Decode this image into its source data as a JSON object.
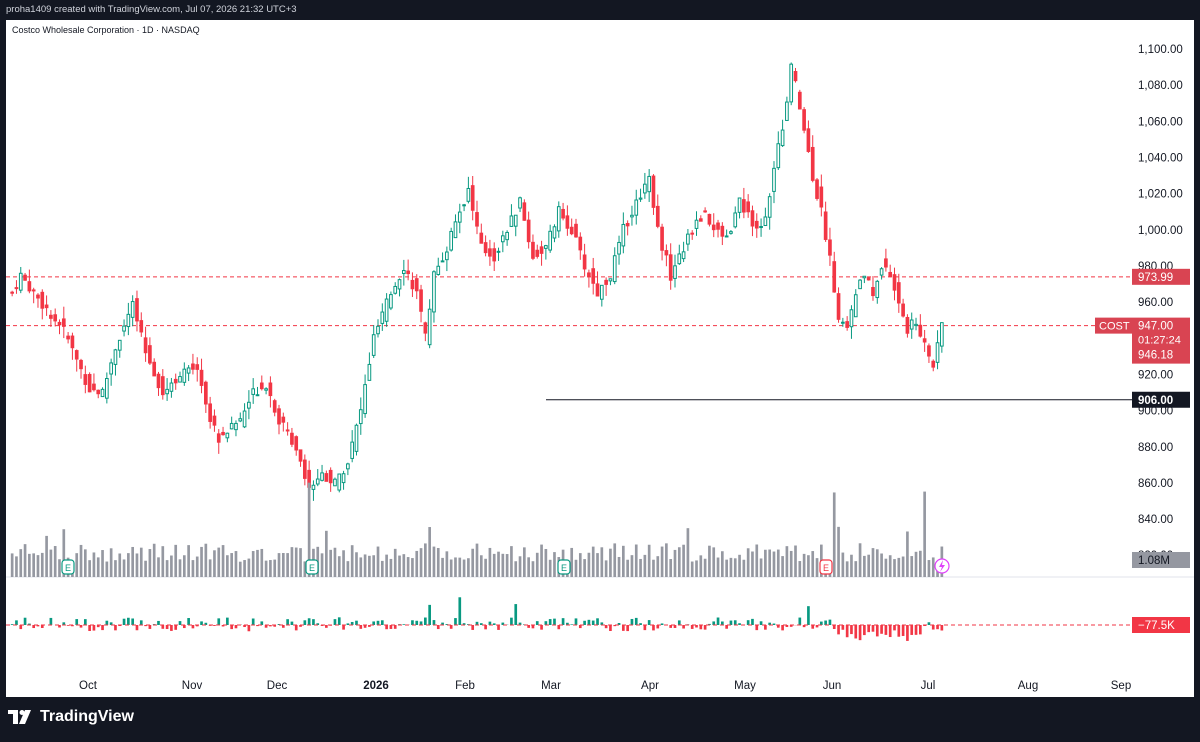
{
  "header": {
    "credit": "proha1409 created with TradingView.com, Jul 07, 2026 21:32 UTC+3"
  },
  "symbol": {
    "title": "Costco Wholesale Corporation · 1D · NASDAQ"
  },
  "brand": {
    "name": "TradingView",
    "logo_icon": "tradingview-logo-icon"
  },
  "colors": {
    "up": "#089981",
    "down": "#f23645",
    "volume": "#9598a1",
    "accent": "#d94452"
  },
  "chart_data": {
    "type": "candlestick",
    "y_axis": {
      "min": 830,
      "max": 1100,
      "ticks": [
        "1,100.00",
        "1,080.00",
        "1,060.00",
        "1,040.00",
        "1,020.00",
        "1,000.00",
        "980.00",
        "960.00",
        "940.00",
        "920.00",
        "900.00",
        "880.00",
        "860.00",
        "840.00",
        "820.00"
      ],
      "tick_values": [
        1100,
        1080,
        1060,
        1040,
        1020,
        1000,
        980,
        960,
        940,
        920,
        900,
        880,
        860,
        840,
        820
      ]
    },
    "x_axis": {
      "labels": [
        "Oct",
        "Nov",
        "Dec",
        "2026",
        "Feb",
        "Mar",
        "Apr",
        "May",
        "Jun",
        "Jul",
        "Aug",
        "Sep"
      ]
    },
    "price_lines": [
      {
        "label": "973.99",
        "value": 973.99,
        "style": "dashed"
      },
      {
        "label": "947.00",
        "value": 947.0,
        "style": "dashed"
      },
      {
        "label": "906.00",
        "value": 906.0,
        "style": "solid"
      }
    ],
    "last_price": {
      "ticker": "COST",
      "price": "947.00",
      "countdown": "01:27:24",
      "secondary": "946.18"
    },
    "volume_label": "1.08M",
    "delta_label": "−77.5K",
    "earnings_markers": [
      "E",
      "E",
      "E",
      "E"
    ],
    "anchors": [
      {
        "i": 0,
        "v": 965
      },
      {
        "i": 2,
        "v": 975
      },
      {
        "i": 6,
        "v": 962
      },
      {
        "i": 12,
        "v": 945
      },
      {
        "i": 15,
        "v": 928
      },
      {
        "i": 18,
        "v": 912
      },
      {
        "i": 21,
        "v": 910
      },
      {
        "i": 24,
        "v": 935
      },
      {
        "i": 28,
        "v": 958
      },
      {
        "i": 31,
        "v": 932
      },
      {
        "i": 35,
        "v": 910
      },
      {
        "i": 38,
        "v": 918
      },
      {
        "i": 43,
        "v": 925
      },
      {
        "i": 46,
        "v": 895
      },
      {
        "i": 48,
        "v": 885
      },
      {
        "i": 53,
        "v": 895
      },
      {
        "i": 56,
        "v": 910
      },
      {
        "i": 59,
        "v": 915
      },
      {
        "i": 62,
        "v": 895
      },
      {
        "i": 66,
        "v": 880
      },
      {
        "i": 69,
        "v": 858
      },
      {
        "i": 72,
        "v": 865
      },
      {
        "i": 75,
        "v": 860
      },
      {
        "i": 78,
        "v": 872
      },
      {
        "i": 81,
        "v": 900
      },
      {
        "i": 84,
        "v": 940
      },
      {
        "i": 88,
        "v": 965
      },
      {
        "i": 91,
        "v": 980
      },
      {
        "i": 94,
        "v": 965
      },
      {
        "i": 96,
        "v": 940
      },
      {
        "i": 98,
        "v": 975
      },
      {
        "i": 101,
        "v": 990
      },
      {
        "i": 103,
        "v": 1005
      },
      {
        "i": 106,
        "v": 1022
      },
      {
        "i": 109,
        "v": 990
      },
      {
        "i": 112,
        "v": 985
      },
      {
        "i": 115,
        "v": 1000
      },
      {
        "i": 118,
        "v": 1015
      },
      {
        "i": 121,
        "v": 985
      },
      {
        "i": 124,
        "v": 990
      },
      {
        "i": 127,
        "v": 1010
      },
      {
        "i": 130,
        "v": 1000
      },
      {
        "i": 133,
        "v": 980
      },
      {
        "i": 136,
        "v": 965
      },
      {
        "i": 139,
        "v": 975
      },
      {
        "i": 142,
        "v": 1000
      },
      {
        "i": 145,
        "v": 1015
      },
      {
        "i": 148,
        "v": 1030
      },
      {
        "i": 150,
        "v": 1000
      },
      {
        "i": 153,
        "v": 975
      },
      {
        "i": 155,
        "v": 985
      },
      {
        "i": 158,
        "v": 1000
      },
      {
        "i": 161,
        "v": 1010
      },
      {
        "i": 163,
        "v": 1000
      },
      {
        "i": 166,
        "v": 995
      },
      {
        "i": 169,
        "v": 1015
      },
      {
        "i": 172,
        "v": 1005
      },
      {
        "i": 174,
        "v": 1000
      },
      {
        "i": 176,
        "v": 1020
      },
      {
        "i": 178,
        "v": 1045
      },
      {
        "i": 180,
        "v": 1070
      },
      {
        "i": 181,
        "v": 1090
      },
      {
        "i": 182,
        "v": 1080
      },
      {
        "i": 184,
        "v": 1055
      },
      {
        "i": 186,
        "v": 1030
      },
      {
        "i": 188,
        "v": 1010
      },
      {
        "i": 190,
        "v": 985
      },
      {
        "i": 192,
        "v": 950
      },
      {
        "i": 194,
        "v": 945
      },
      {
        "i": 196,
        "v": 965
      },
      {
        "i": 198,
        "v": 975
      },
      {
        "i": 200,
        "v": 965
      },
      {
        "i": 202,
        "v": 980
      },
      {
        "i": 204,
        "v": 975
      },
      {
        "i": 206,
        "v": 960
      },
      {
        "i": 208,
        "v": 945
      },
      {
        "i": 210,
        "v": 950
      },
      {
        "i": 212,
        "v": 935
      },
      {
        "i": 214,
        "v": 925
      },
      {
        "i": 215,
        "v": 935
      },
      {
        "i": 216,
        "v": 948
      }
    ]
  }
}
